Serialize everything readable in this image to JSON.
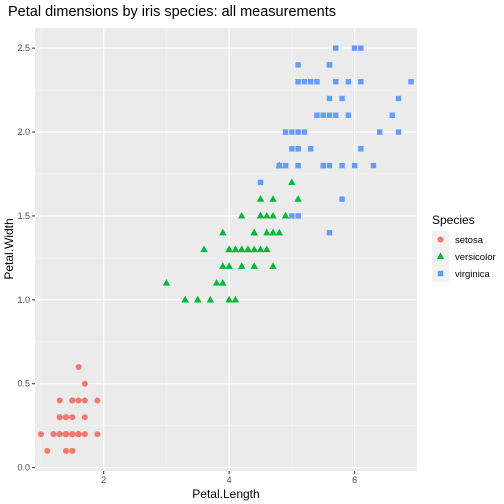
{
  "chart_data": {
    "type": "scatter",
    "title": "Petal dimensions by iris species: all measurements",
    "xlabel": "Petal.Length",
    "ylabel": "Petal.Width",
    "xlim": [
      0.905,
      6.995
    ],
    "ylim": [
      -0.02,
      2.62
    ],
    "x_ticks": [
      2,
      4,
      6
    ],
    "x_tick_labels": [
      "2",
      "4",
      "6"
    ],
    "y_ticks": [
      0.0,
      0.5,
      1.0,
      1.5,
      2.0,
      2.5
    ],
    "y_tick_labels": [
      "0.0",
      "0.5",
      "1.0",
      "1.5",
      "2.0",
      "2.5"
    ],
    "grid": true,
    "background": "#ebebeb",
    "legend": {
      "title": "Species",
      "placement": "right"
    },
    "series": [
      {
        "name": "setosa",
        "color": "#f8766d",
        "shape": "circle",
        "points": [
          [
            1.4,
            0.2
          ],
          [
            1.4,
            0.2
          ],
          [
            1.3,
            0.2
          ],
          [
            1.5,
            0.2
          ],
          [
            1.4,
            0.2
          ],
          [
            1.7,
            0.4
          ],
          [
            1.4,
            0.3
          ],
          [
            1.5,
            0.2
          ],
          [
            1.4,
            0.2
          ],
          [
            1.5,
            0.1
          ],
          [
            1.5,
            0.2
          ],
          [
            1.6,
            0.2
          ],
          [
            1.4,
            0.1
          ],
          [
            1.1,
            0.1
          ],
          [
            1.2,
            0.2
          ],
          [
            1.5,
            0.4
          ],
          [
            1.3,
            0.4
          ],
          [
            1.4,
            0.3
          ],
          [
            1.7,
            0.3
          ],
          [
            1.5,
            0.3
          ],
          [
            1.7,
            0.2
          ],
          [
            1.5,
            0.4
          ],
          [
            1.0,
            0.2
          ],
          [
            1.7,
            0.5
          ],
          [
            1.9,
            0.2
          ],
          [
            1.6,
            0.2
          ],
          [
            1.6,
            0.4
          ],
          [
            1.5,
            0.2
          ],
          [
            1.4,
            0.2
          ],
          [
            1.6,
            0.2
          ],
          [
            1.6,
            0.2
          ],
          [
            1.5,
            0.4
          ],
          [
            1.5,
            0.1
          ],
          [
            1.4,
            0.2
          ],
          [
            1.5,
            0.2
          ],
          [
            1.2,
            0.2
          ],
          [
            1.3,
            0.2
          ],
          [
            1.4,
            0.1
          ],
          [
            1.3,
            0.2
          ],
          [
            1.5,
            0.2
          ],
          [
            1.3,
            0.3
          ],
          [
            1.3,
            0.3
          ],
          [
            1.3,
            0.2
          ],
          [
            1.6,
            0.6
          ],
          [
            1.9,
            0.4
          ],
          [
            1.4,
            0.3
          ],
          [
            1.6,
            0.2
          ],
          [
            1.4,
            0.2
          ],
          [
            1.5,
            0.2
          ],
          [
            1.4,
            0.2
          ]
        ]
      },
      {
        "name": "versicolor",
        "color": "#00ba38",
        "shape": "triangle",
        "points": [
          [
            4.7,
            1.4
          ],
          [
            4.5,
            1.5
          ],
          [
            4.9,
            1.5
          ],
          [
            4.0,
            1.3
          ],
          [
            4.6,
            1.5
          ],
          [
            4.5,
            1.3
          ],
          [
            4.7,
            1.6
          ],
          [
            3.3,
            1.0
          ],
          [
            4.6,
            1.3
          ],
          [
            3.9,
            1.4
          ],
          [
            3.5,
            1.0
          ],
          [
            4.2,
            1.5
          ],
          [
            4.0,
            1.0
          ],
          [
            4.7,
            1.4
          ],
          [
            3.6,
            1.3
          ],
          [
            4.4,
            1.4
          ],
          [
            4.5,
            1.5
          ],
          [
            4.1,
            1.0
          ],
          [
            4.5,
            1.5
          ],
          [
            3.9,
            1.1
          ],
          [
            4.8,
            1.8
          ],
          [
            4.0,
            1.3
          ],
          [
            4.9,
            1.5
          ],
          [
            4.7,
            1.2
          ],
          [
            4.3,
            1.3
          ],
          [
            4.4,
            1.4
          ],
          [
            4.8,
            1.4
          ],
          [
            5.0,
            1.7
          ],
          [
            4.5,
            1.5
          ],
          [
            3.5,
            1.0
          ],
          [
            3.8,
            1.1
          ],
          [
            3.7,
            1.0
          ],
          [
            3.9,
            1.2
          ],
          [
            5.1,
            1.6
          ],
          [
            4.5,
            1.5
          ],
          [
            4.5,
            1.6
          ],
          [
            4.7,
            1.5
          ],
          [
            4.4,
            1.3
          ],
          [
            4.1,
            1.3
          ],
          [
            4.0,
            1.3
          ],
          [
            4.4,
            1.2
          ],
          [
            4.6,
            1.4
          ],
          [
            4.0,
            1.2
          ],
          [
            3.3,
            1.0
          ],
          [
            4.2,
            1.3
          ],
          [
            4.2,
            1.2
          ],
          [
            4.2,
            1.3
          ],
          [
            4.3,
            1.3
          ],
          [
            3.0,
            1.1
          ],
          [
            4.1,
            1.3
          ]
        ]
      },
      {
        "name": "virginica",
        "color": "#619cff",
        "shape": "square",
        "points": [
          [
            6.0,
            2.5
          ],
          [
            5.1,
            1.9
          ],
          [
            5.9,
            2.1
          ],
          [
            5.6,
            1.8
          ],
          [
            5.8,
            2.2
          ],
          [
            6.6,
            2.1
          ],
          [
            4.5,
            1.7
          ],
          [
            6.3,
            1.8
          ],
          [
            5.8,
            1.8
          ],
          [
            6.1,
            2.5
          ],
          [
            5.1,
            2.0
          ],
          [
            5.3,
            1.9
          ],
          [
            5.5,
            2.1
          ],
          [
            5.0,
            2.0
          ],
          [
            5.1,
            2.4
          ],
          [
            5.3,
            2.3
          ],
          [
            5.5,
            1.8
          ],
          [
            6.7,
            2.2
          ],
          [
            6.9,
            2.3
          ],
          [
            5.0,
            1.5
          ],
          [
            5.7,
            2.3
          ],
          [
            4.9,
            2.0
          ],
          [
            6.7,
            2.0
          ],
          [
            4.9,
            1.8
          ],
          [
            5.7,
            2.1
          ],
          [
            6.0,
            1.8
          ],
          [
            4.8,
            1.8
          ],
          [
            4.9,
            1.8
          ],
          [
            5.6,
            2.1
          ],
          [
            5.8,
            1.6
          ],
          [
            6.1,
            1.9
          ],
          [
            6.4,
            2.0
          ],
          [
            5.6,
            2.2
          ],
          [
            5.1,
            1.5
          ],
          [
            5.6,
            1.4
          ],
          [
            6.1,
            2.3
          ],
          [
            5.6,
            2.4
          ],
          [
            5.5,
            1.8
          ],
          [
            4.8,
            1.8
          ],
          [
            5.4,
            2.1
          ],
          [
            5.6,
            2.4
          ],
          [
            5.1,
            2.3
          ],
          [
            5.1,
            1.9
          ],
          [
            5.9,
            2.3
          ],
          [
            5.7,
            2.5
          ],
          [
            5.2,
            2.3
          ],
          [
            5.0,
            1.9
          ],
          [
            5.2,
            2.0
          ],
          [
            5.4,
            2.3
          ],
          [
            5.1,
            1.8
          ]
        ]
      }
    ]
  }
}
